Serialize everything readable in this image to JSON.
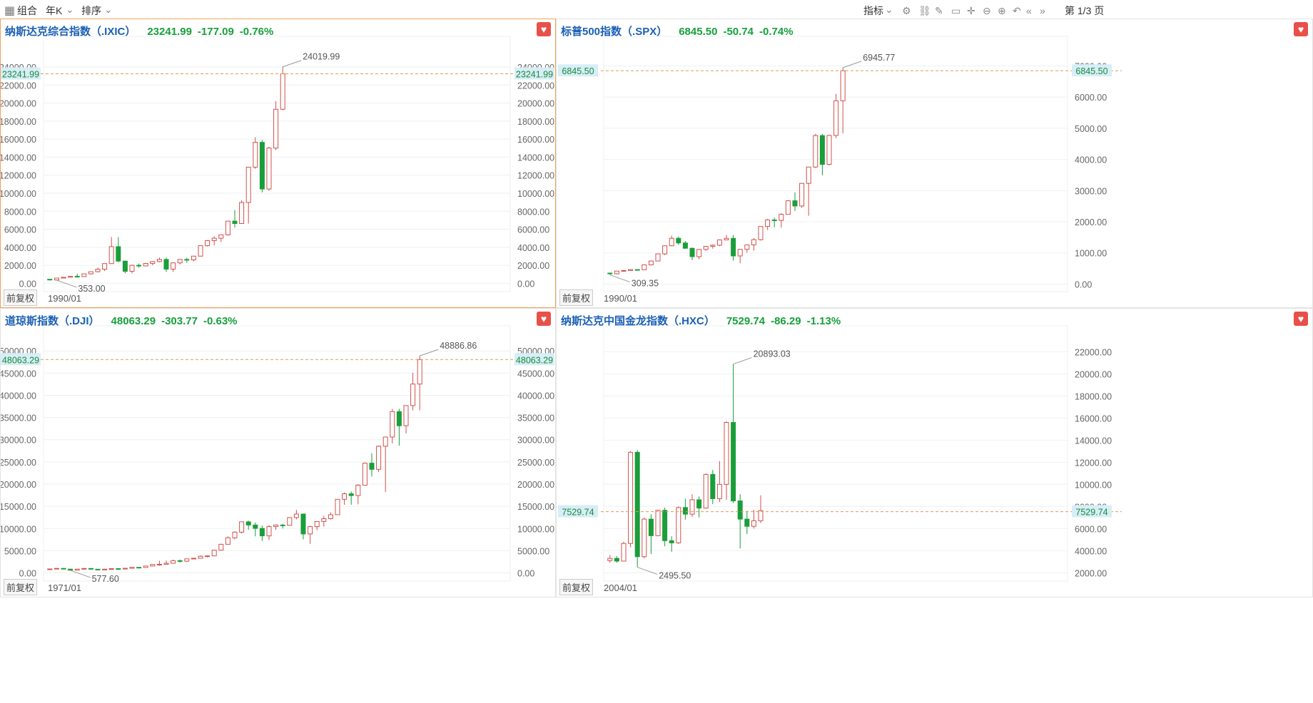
{
  "toolbar": {
    "combo_label": "组合",
    "period_label": "年K",
    "sort_label": "排序",
    "indicator_label": "指标",
    "page_label": "第 1/3 页"
  },
  "panels": [
    {
      "name": "纳斯达克综合指数（.IXIC）",
      "price": "23241.99",
      "change": "-177.09",
      "pct": "-0.76%",
      "current": 23241.99,
      "current_label": "23241.99",
      "axis_ticks": [
        "0.00",
        "2000.00",
        "4000.00",
        "6000.00",
        "8000.00",
        "10000.00",
        "12000.00",
        "14000.00",
        "16000.00",
        "18000.00",
        "20000.00",
        "22000.00",
        "24000.00"
      ],
      "ymin": -600,
      "ymax": 25500,
      "high_label": "24019.99",
      "low_label": "353.00",
      "adjust_label": "前复权",
      "start_label": "1990/01",
      "selected": true,
      "candles": [
        [
          454,
          374,
          470,
          330
        ],
        [
          374,
          586,
          618,
          353
        ],
        [
          586,
          677,
          711,
          545
        ],
        [
          677,
          777,
          803,
          645
        ],
        [
          777,
          752,
          1062,
          692
        ],
        [
          752,
          1052,
          1071,
          742
        ],
        [
          1052,
          1291,
          1292,
          988
        ],
        [
          1291,
          1570,
          1746,
          1216
        ],
        [
          1570,
          2193,
          2203,
          1358
        ],
        [
          2193,
          4069,
          5133,
          2192
        ],
        [
          4069,
          2470,
          5132,
          2333
        ],
        [
          2470,
          1335,
          2099,
          1112
        ],
        [
          1335,
          2003,
          2079,
          1108
        ],
        [
          2003,
          1932,
          2191,
          1750
        ],
        [
          1932,
          2205,
          2278,
          1889
        ],
        [
          2205,
          2415,
          2471,
          2016
        ],
        [
          2415,
          2652,
          2859,
          2341
        ],
        [
          2652,
          1577,
          2861,
          1268
        ],
        [
          1577,
          2269,
          2326,
          1265
        ],
        [
          2269,
          2653,
          2691,
          2106
        ],
        [
          2653,
          2605,
          2841,
          2298
        ],
        [
          2605,
          3019,
          3020,
          2441
        ],
        [
          3019,
          4177,
          4178,
          3019
        ],
        [
          4177,
          4736,
          4811,
          4093
        ],
        [
          4736,
          5007,
          5232,
          4209
        ],
        [
          5007,
          5383,
          5342,
          4596
        ],
        [
          5383,
          6903,
          6950,
          5306
        ],
        [
          6903,
          6635,
          8133,
          6190
        ],
        [
          6635,
          8972,
          9202,
          6632
        ],
        [
          8972,
          12888,
          12899,
          6631
        ],
        [
          12888,
          15645,
          16212,
          12710
        ],
        [
          15645,
          10466,
          15901,
          10089
        ],
        [
          10466,
          15011,
          15150,
          10265
        ],
        [
          15011,
          19311,
          20204,
          14784
        ],
        [
          19311,
          23241,
          24019,
          19200
        ]
      ],
      "high_idx": 34,
      "low_idx": 1
    },
    {
      "name": "标普500指数（.SPX）",
      "price": "6845.50",
      "change": "-50.74",
      "pct": "-0.74%",
      "current": 6845.5,
      "current_label": "6845.50",
      "axis_ticks": [
        "0.00",
        "1000.00",
        "2000.00",
        "3000.00",
        "4000.00",
        "5000.00",
        "6000.00",
        "7000.00"
      ],
      "ymin": -150,
      "ymax": 7400,
      "high_label": "6945.77",
      "low_label": "309.35",
      "adjust_label": "前复权",
      "start_label": "1990/01",
      "selected": false,
      "candles": [
        [
          353,
          330,
          368,
          295
        ],
        [
          330,
          417,
          418,
          311
        ],
        [
          417,
          436,
          442,
          394
        ],
        [
          436,
          466,
          471,
          429
        ],
        [
          466,
          459,
          482,
          438
        ],
        [
          459,
          616,
          622,
          459
        ],
        [
          616,
          741,
          757,
          598
        ],
        [
          741,
          970,
          983,
          737
        ],
        [
          970,
          1229,
          1241,
          927
        ],
        [
          1229,
          1469,
          1553,
          1212
        ],
        [
          1469,
          1320,
          1527,
          1254
        ],
        [
          1320,
          1148,
          1383,
          1138
        ],
        [
          1148,
          880,
          1173,
          768
        ],
        [
          880,
          1112,
          1112,
          800
        ],
        [
          1112,
          1212,
          1217,
          1061
        ],
        [
          1212,
          1248,
          1272,
          1137
        ],
        [
          1248,
          1418,
          1431,
          1219
        ],
        [
          1418,
          1468,
          1576,
          1406
        ],
        [
          1468,
          903,
          1576,
          752
        ],
        [
          903,
          1115,
          1130,
          667
        ],
        [
          1115,
          1258,
          1263,
          1010
        ],
        [
          1258,
          1426,
          1475,
          1075
        ],
        [
          1426,
          1848,
          1849,
          1398
        ],
        [
          1848,
          2059,
          2094,
          1737
        ],
        [
          2059,
          2044,
          2135,
          1821
        ],
        [
          2044,
          2239,
          2277,
          1810
        ],
        [
          2239,
          2674,
          2695,
          2233
        ],
        [
          2674,
          2507,
          2941,
          2347
        ],
        [
          2507,
          3231,
          3248,
          2444
        ],
        [
          3231,
          3756,
          3760,
          2192
        ],
        [
          3756,
          4766,
          4819,
          3723
        ],
        [
          4766,
          3840,
          4819,
          3492
        ],
        [
          3840,
          4770,
          4793,
          3808
        ],
        [
          4770,
          5882,
          6100,
          4682
        ],
        [
          5882,
          6845,
          6946,
          4835
        ]
      ],
      "high_idx": 34,
      "low_idx": 0
    },
    {
      "name": "道琼斯指数（.DJI）",
      "price": "48063.29",
      "change": "-303.77",
      "pct": "-0.63%",
      "current": 48063.29,
      "current_label": "48063.29",
      "axis_ticks": [
        "0.00",
        "5000.00",
        "10000.00",
        "15000.00",
        "20000.00",
        "25000.00",
        "30000.00",
        "35000.00",
        "40000.00",
        "45000.00",
        "50000.00"
      ],
      "ymin": -1200,
      "ymax": 51800,
      "high_label": "48886.86",
      "low_label": "577.60",
      "adjust_label": "前复权",
      "start_label": "1971/01",
      "selected": false,
      "candles": [
        [
          839,
          890,
          951,
          798
        ],
        [
          890,
          1020,
          1067,
          889
        ],
        [
          1020,
          850,
          1051,
          788
        ],
        [
          850,
          616,
          891,
          577
        ],
        [
          616,
          852,
          881,
          632
        ],
        [
          852,
          1004,
          1014,
          858
        ],
        [
          1004,
          831,
          999,
          800
        ],
        [
          831,
          805,
          866,
          742
        ],
        [
          805,
          838,
          907,
          796
        ],
        [
          838,
          964,
          1025,
          730
        ],
        [
          964,
          875,
          1024,
          824
        ],
        [
          875,
          1046,
          1070,
          776
        ],
        [
          1046,
          1258,
          1287,
          1027
        ],
        [
          1258,
          1211,
          1292,
          1086
        ],
        [
          1211,
          1546,
          1553,
          1184
        ],
        [
          1546,
          1895,
          1955,
          1502
        ],
        [
          1895,
          1938,
          2722,
          1616
        ],
        [
          1938,
          2168,
          2791,
          1879
        ],
        [
          2168,
          2753,
          2999,
          2365
        ],
        [
          2753,
          2633,
          3000,
          2345
        ],
        [
          2633,
          3168,
          3169,
          2470
        ],
        [
          3168,
          3301,
          3413,
          3136
        ],
        [
          3301,
          3754,
          3978,
          3593
        ],
        [
          3754,
          3834,
          3914,
          3520
        ],
        [
          3834,
          5117,
          5216,
          3832
        ],
        [
          5117,
          6448,
          6561,
          5032
        ],
        [
          6448,
          7908,
          8259,
          6391
        ],
        [
          7908,
          9181,
          9374,
          7539
        ],
        [
          9181,
          11497,
          11569,
          8864
        ],
        [
          11497,
          10787,
          11750,
          9731
        ],
        [
          10787,
          10021,
          11350,
          8235
        ],
        [
          10021,
          8341,
          10673,
          7197
        ],
        [
          8341,
          10453,
          10737,
          7416
        ],
        [
          10453,
          10783,
          10898,
          9708
        ],
        [
          10783,
          10718,
          11053,
          10000
        ],
        [
          10718,
          12463,
          12510,
          10683
        ],
        [
          12463,
          13264,
          14198,
          12050
        ],
        [
          13264,
          8776,
          13136,
          7552
        ],
        [
          8776,
          10428,
          10580,
          6547
        ],
        [
          10428,
          11578,
          11625,
          9614
        ],
        [
          11578,
          12218,
          12876,
          10404
        ],
        [
          12218,
          13104,
          13661,
          12035
        ],
        [
          13104,
          16577,
          16588,
          13104
        ],
        [
          16577,
          17823,
          18103,
          15340
        ],
        [
          17823,
          17425,
          18351,
          15370
        ],
        [
          17425,
          19763,
          19987,
          15450
        ],
        [
          19763,
          24719,
          24876,
          19677
        ],
        [
          24719,
          23327,
          26951,
          21712
        ],
        [
          23327,
          28538,
          28702,
          22686
        ],
        [
          28538,
          30606,
          29568,
          18213
        ],
        [
          30606,
          36338,
          36953,
          29156
        ],
        [
          36338,
          33147,
          36953,
          28661
        ],
        [
          33147,
          37689,
          37779,
          31430
        ],
        [
          37689,
          42544,
          45073,
          36611
        ],
        [
          42544,
          48063,
          48887,
          36612
        ]
      ],
      "high_idx": 54,
      "low_idx": 3
    },
    {
      "name": "纳斯达克中国金龙指数（.HXC）",
      "price": "7529.74",
      "change": "-86.29",
      "pct": "-1.13%",
      "current": 7529.74,
      "current_label": "7529.74",
      "axis_ticks": [
        "2000.00",
        "4000.00",
        "6000.00",
        "8000.00",
        "10000.00",
        "12000.00",
        "14000.00",
        "16000.00",
        "18000.00",
        "20000.00",
        "22000.00"
      ],
      "ymin": 1500,
      "ymax": 22800,
      "high_label": "20893.03",
      "low_label": "2495.50",
      "adjust_label": "前复权",
      "start_label": "2004/01",
      "selected": false,
      "candles": [
        [
          3100,
          3300,
          3600,
          2900
        ],
        [
          3300,
          3050,
          3500,
          2900
        ],
        [
          3050,
          4650,
          4800,
          3050
        ],
        [
          4650,
          12900,
          13000,
          4300
        ],
        [
          12900,
          3450,
          13100,
          2496
        ],
        [
          3450,
          6850,
          7000,
          3300
        ],
        [
          6850,
          5350,
          7300,
          3700
        ],
        [
          5350,
          7650,
          7700,
          5300
        ],
        [
          7650,
          4900,
          7900,
          4400
        ],
        [
          4900,
          4700,
          5300,
          3900
        ],
        [
          4700,
          7900,
          8000,
          4600
        ],
        [
          7900,
          7300,
          8700,
          6800
        ],
        [
          7300,
          8600,
          9100,
          7050
        ],
        [
          8600,
          7850,
          8900,
          7000
        ],
        [
          7850,
          10900,
          11000,
          7800
        ],
        [
          10900,
          8700,
          11300,
          8200
        ],
        [
          8700,
          10000,
          12100,
          8400
        ],
        [
          10000,
          15600,
          15700,
          8600
        ],
        [
          15600,
          8500,
          20893,
          8300
        ],
        [
          8500,
          6850,
          9100,
          4200
        ],
        [
          6850,
          6200,
          7600,
          5500
        ],
        [
          6200,
          6700,
          7700,
          6000
        ],
        [
          6700,
          7620,
          9000,
          6500
        ]
      ],
      "high_idx": 18,
      "low_idx": 4
    }
  ],
  "colors": {
    "up": "#d0524c",
    "down": "#1a9e3a",
    "current_line": "#e09a5a",
    "label_bg": "#d7eef7",
    "grid": "#eef0f2",
    "axis_text": "#666",
    "accent_border": "#f0a15a"
  }
}
